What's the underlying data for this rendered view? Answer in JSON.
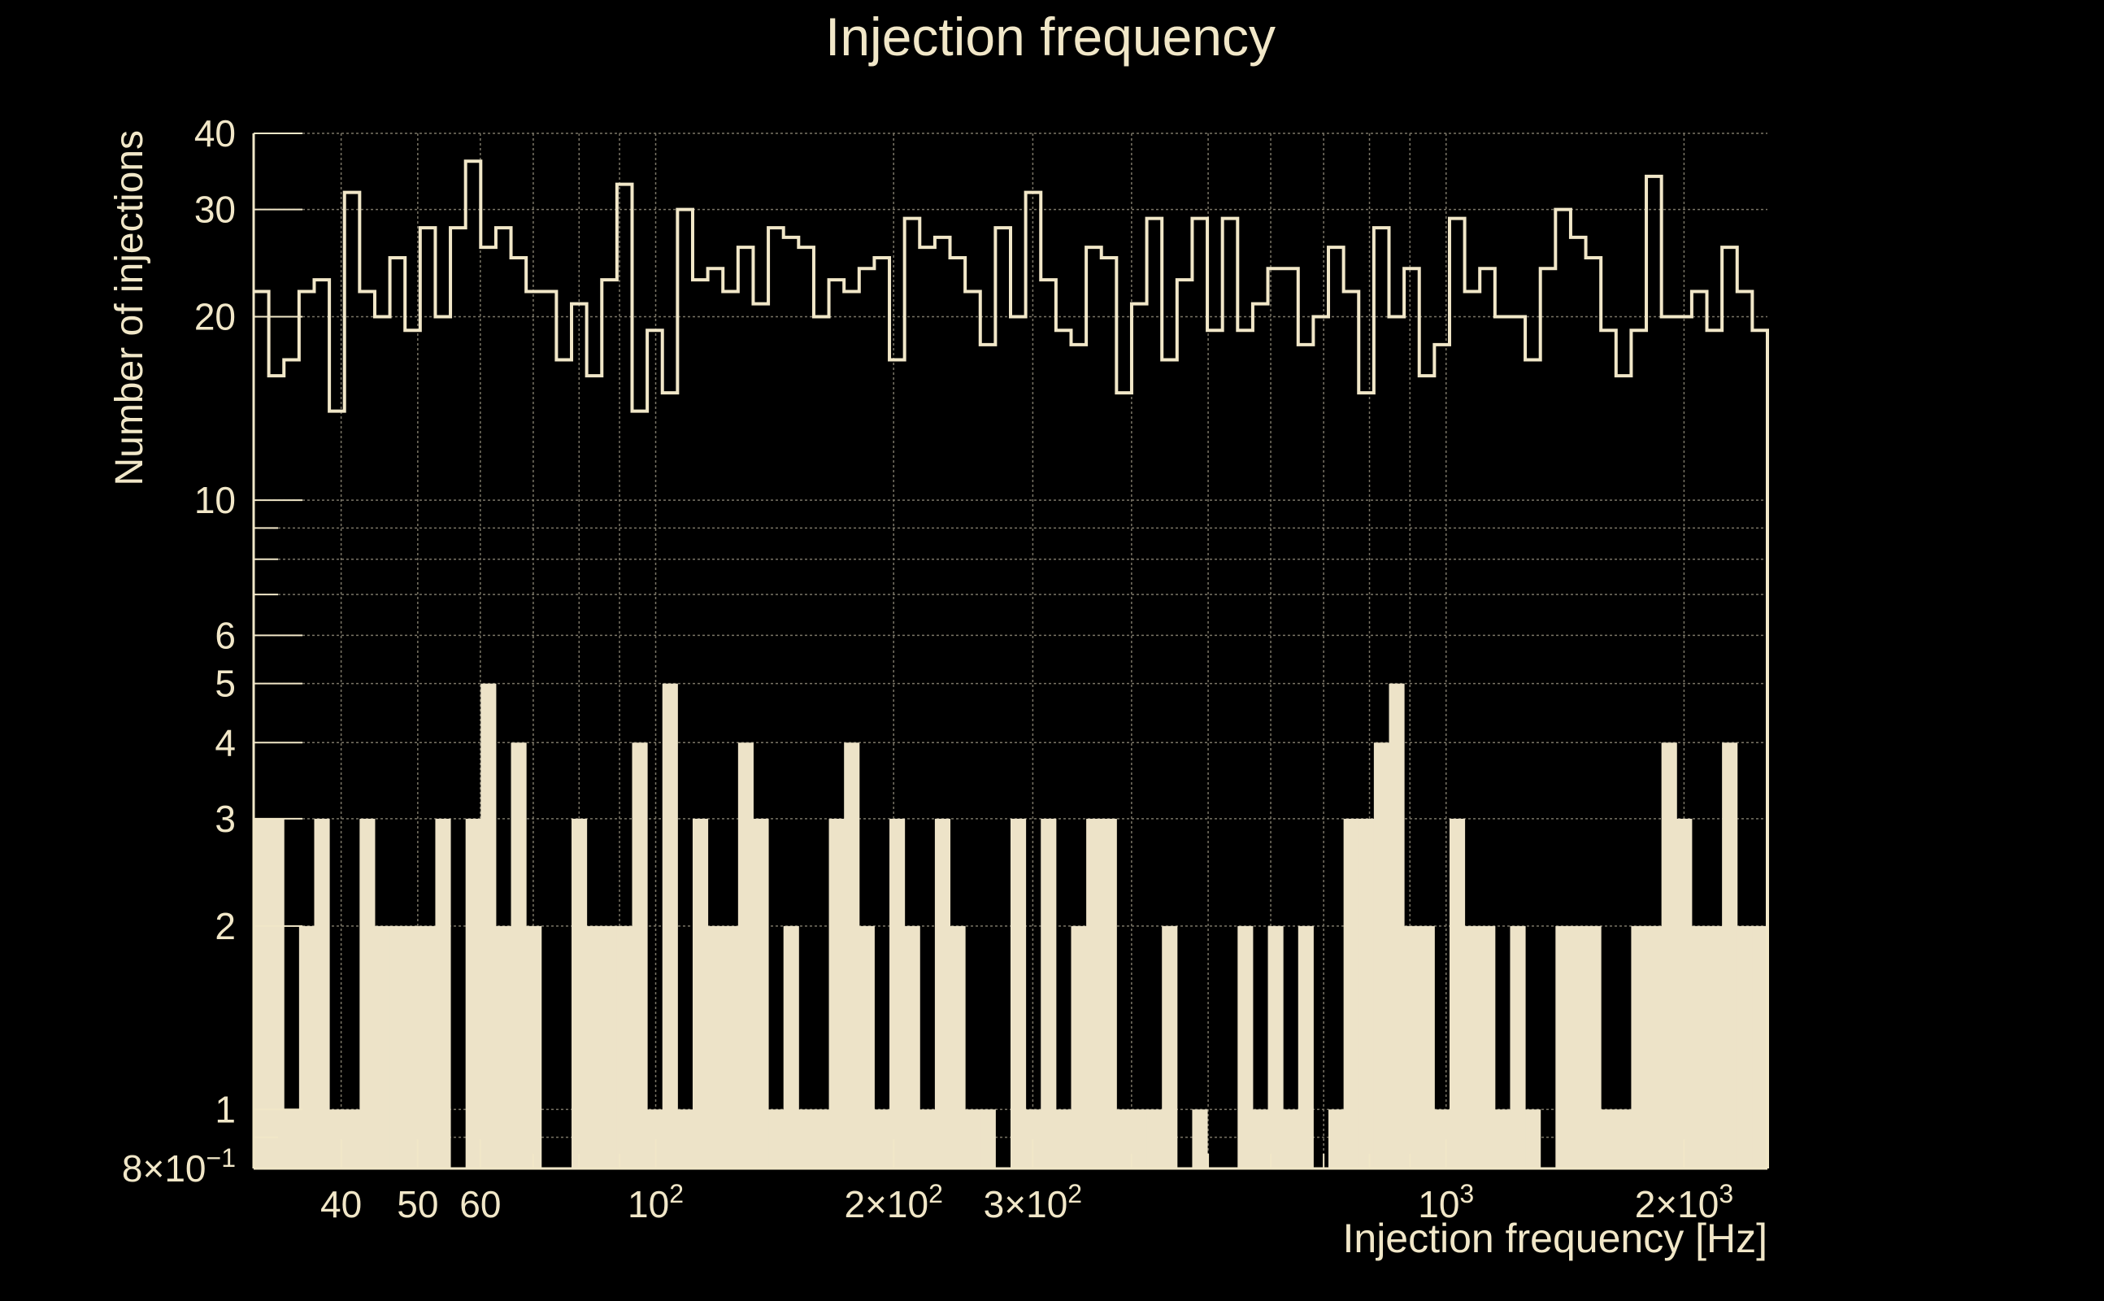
{
  "chart_data": {
    "type": "histogram",
    "title": "Injection frequency",
    "xlabel": "Injection frequency [Hz]",
    "ylabel": "Number of injections",
    "x_scale": "log",
    "y_scale": "log",
    "xlim": [
      31,
      2550
    ],
    "ylim": [
      0.8,
      40
    ],
    "grid": true,
    "colors": {
      "background": "#000000",
      "foreground": "#f1e7c8",
      "fill": "#ede3c8",
      "grid": "#7a7566"
    },
    "x_ticks": [
      {
        "value": 40,
        "label": "40"
      },
      {
        "value": 50,
        "label": "50"
      },
      {
        "value": 60,
        "label": "60"
      },
      {
        "value": 100,
        "label": "10",
        "sup": "2"
      },
      {
        "value": 200,
        "label": "2×10",
        "sup": "2"
      },
      {
        "value": 300,
        "label": "3×10",
        "sup": "2"
      },
      {
        "value": 1000,
        "label": "10",
        "sup": "3"
      },
      {
        "value": 2000,
        "label": "2×10",
        "sup": "3"
      }
    ],
    "y_ticks": [
      {
        "value": 0.8,
        "label": "8×10",
        "sup": "−1"
      },
      {
        "value": 1,
        "label": "1"
      },
      {
        "value": 2,
        "label": "2"
      },
      {
        "value": 3,
        "label": "3"
      },
      {
        "value": 4,
        "label": "4"
      },
      {
        "value": 5,
        "label": "5"
      },
      {
        "value": 6,
        "label": "6"
      },
      {
        "value": 10,
        "label": "10"
      },
      {
        "value": 20,
        "label": "20"
      },
      {
        "value": 30,
        "label": "30"
      },
      {
        "value": 40,
        "label": "40"
      }
    ],
    "bins": {
      "start": 31,
      "end": 2550,
      "count": 100
    },
    "series": [
      {
        "style": "step",
        "values": [
          22,
          16,
          17,
          22,
          23,
          14,
          32,
          22,
          20,
          25,
          19,
          28,
          20,
          28,
          36,
          26,
          28,
          25,
          22,
          22,
          17,
          21,
          16,
          23,
          33,
          14,
          19,
          15,
          30,
          23,
          24,
          22,
          26,
          21,
          28,
          27,
          26,
          20,
          23,
          22,
          24,
          25,
          17,
          29,
          26,
          27,
          25,
          22,
          18,
          28,
          20,
          32,
          23,
          19,
          18,
          26,
          25,
          15,
          21,
          29,
          17,
          23,
          29,
          19,
          29,
          19,
          21,
          24,
          24,
          18,
          20,
          26,
          22,
          15,
          28,
          20,
          24,
          16,
          18,
          29,
          22,
          24,
          20,
          20,
          17,
          24,
          30,
          27,
          25,
          19,
          16,
          19,
          34,
          20,
          20,
          22,
          19,
          26,
          22,
          19
        ]
      },
      {
        "style": "filled",
        "values": [
          3,
          3,
          1,
          2,
          3,
          1,
          1,
          3,
          2,
          2,
          2,
          2,
          3,
          0.8,
          3,
          5,
          2,
          4,
          2,
          0.8,
          0.8,
          3,
          2,
          2,
          2,
          4,
          1,
          5,
          1,
          3,
          2,
          2,
          4,
          3,
          1,
          2,
          1,
          1,
          3,
          4,
          2,
          1,
          3,
          2,
          1,
          3,
          2,
          1,
          1,
          0.8,
          3,
          1,
          3,
          1,
          2,
          3,
          3,
          1,
          1,
          1,
          2,
          0.8,
          1,
          0.8,
          0.8,
          2,
          1,
          2,
          1,
          2,
          0.8,
          1,
          3,
          3,
          4,
          5,
          2,
          2,
          1,
          3,
          2,
          2,
          1,
          2,
          1,
          0.8,
          2,
          2,
          2,
          1,
          1,
          2,
          2,
          4,
          3,
          2,
          2,
          4,
          2,
          2
        ]
      }
    ]
  }
}
